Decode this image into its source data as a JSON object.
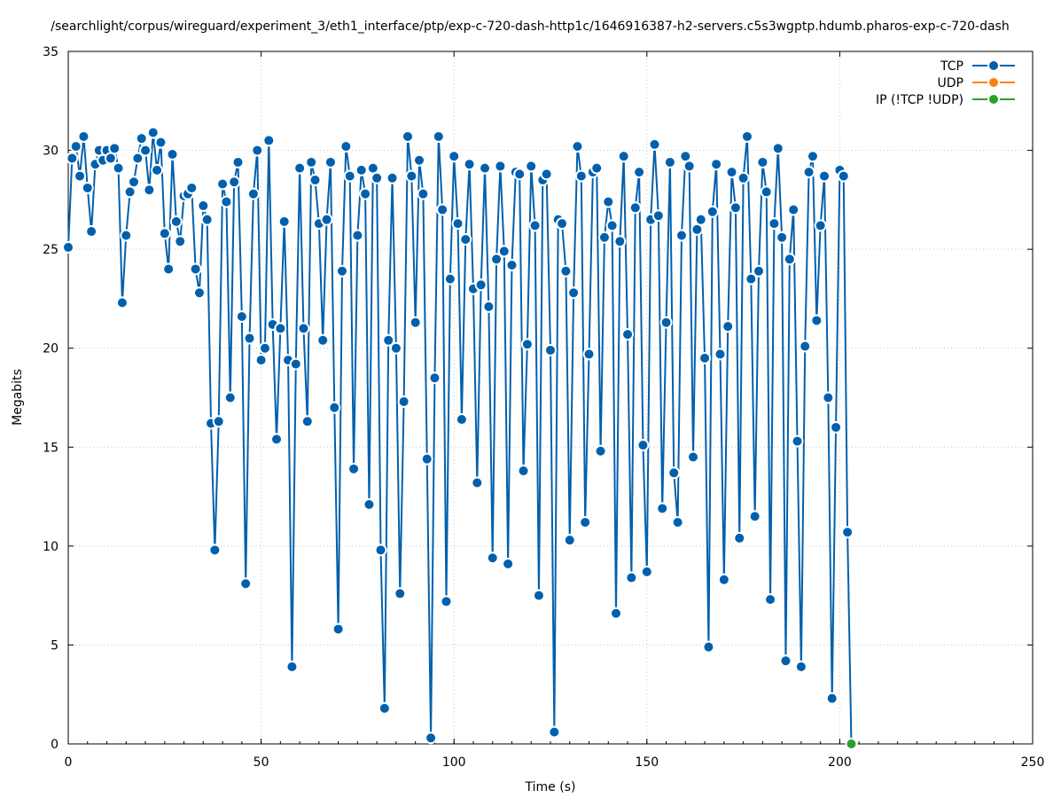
{
  "chart_data": {
    "type": "line",
    "title": "/searchlight/corpus/wireguard/experiment_3/eth1_interface/ptp/exp-c-720-dash-http1c/1646916387-h2-servers.c5s3wgptp.hdumb.pharos-exp-c-720-dash",
    "xlabel": "Time (s)",
    "ylabel": "Megabits",
    "xlim": [
      0,
      250
    ],
    "ylim": [
      0,
      35
    ],
    "xticks": [
      0,
      50,
      100,
      150,
      200,
      250
    ],
    "yticks": [
      0,
      5,
      10,
      15,
      20,
      25,
      30,
      35
    ],
    "grid": true,
    "legend_position": "top-right",
    "series": [
      {
        "name": "TCP",
        "color": "#0060ad",
        "x": [
          0,
          1,
          2,
          3,
          4,
          5,
          6,
          7,
          8,
          9,
          10,
          11,
          12,
          13,
          14,
          15,
          16,
          17,
          18,
          19,
          20,
          21,
          22,
          23,
          24,
          25,
          26,
          27,
          28,
          29,
          30,
          31,
          32,
          33,
          34,
          35,
          36,
          37,
          38,
          39,
          40,
          41,
          42,
          43,
          44,
          45,
          46,
          47,
          48,
          49,
          50,
          51,
          52,
          53,
          54,
          55,
          56,
          57,
          58,
          59,
          60,
          61,
          62,
          63,
          64,
          65,
          66,
          67,
          68,
          69,
          70,
          71,
          72,
          73,
          74,
          75,
          76,
          77,
          78,
          79,
          80,
          81,
          82,
          83,
          84,
          85,
          86,
          87,
          88,
          89,
          90,
          91,
          92,
          93,
          94,
          95,
          96,
          97,
          98,
          99,
          100,
          101,
          102,
          103,
          104,
          105,
          106,
          107,
          108,
          109,
          110,
          111,
          112,
          113,
          114,
          115,
          116,
          117,
          118,
          119,
          120,
          121,
          122,
          123,
          124,
          125,
          126,
          127,
          128,
          129,
          130,
          131,
          132,
          133,
          134,
          135,
          136,
          137,
          138,
          139,
          140,
          141,
          142,
          143,
          144,
          145,
          146,
          147,
          148,
          149,
          150,
          151,
          152,
          153,
          154,
          155,
          156,
          157,
          158,
          159,
          160,
          161,
          162,
          163,
          164,
          165,
          166,
          167,
          168,
          169,
          170,
          171,
          172,
          173,
          174,
          175,
          176,
          177,
          178,
          179,
          180,
          181,
          182,
          183,
          184,
          185,
          186,
          187,
          188,
          189,
          190,
          191,
          192,
          193,
          194,
          195,
          196,
          197,
          198,
          199,
          200,
          201,
          202,
          203
        ],
        "y": [
          25.1,
          29.6,
          30.2,
          28.7,
          30.7,
          28.1,
          25.9,
          29.3,
          30.0,
          29.5,
          30.0,
          29.6,
          30.1,
          29.1,
          22.3,
          25.7,
          27.9,
          28.4,
          29.6,
          30.6,
          30.0,
          28.0,
          30.9,
          29.0,
          30.4,
          25.8,
          24.0,
          29.8,
          26.4,
          25.4,
          27.7,
          27.8,
          28.1,
          24.0,
          22.8,
          27.2,
          26.5,
          16.2,
          9.8,
          16.3,
          28.3,
          27.4,
          17.5,
          28.4,
          29.4,
          21.6,
          8.1,
          20.5,
          27.8,
          30.0,
          19.4,
          20.0,
          30.5,
          21.2,
          15.4,
          21.0,
          26.4,
          19.4,
          3.9,
          19.2,
          29.1,
          21.0,
          16.3,
          29.4,
          28.5,
          26.3,
          20.4,
          26.5,
          29.4,
          17.0,
          5.8,
          23.9,
          30.2,
          28.7,
          13.9,
          25.7,
          29.0,
          27.8,
          12.1,
          29.1,
          28.6,
          9.8,
          1.8,
          20.4,
          28.6,
          20.0,
          7.6,
          17.3,
          30.7,
          28.7,
          21.3,
          29.5,
          27.8,
          14.4,
          0.3,
          18.5,
          30.7,
          27.0,
          7.2,
          23.5,
          29.7,
          26.3,
          16.4,
          25.5,
          29.3,
          23.0,
          13.2,
          23.2,
          29.1,
          22.1,
          9.4,
          24.5,
          29.2,
          24.9,
          9.1,
          24.2,
          28.9,
          28.8,
          13.8,
          20.2,
          29.2,
          26.2,
          7.5,
          28.5,
          28.8,
          19.9,
          0.6,
          26.5,
          26.3,
          23.9,
          10.3,
          22.8,
          30.2,
          28.7,
          11.2,
          19.7,
          28.9,
          29.1,
          14.8,
          25.6,
          27.4,
          26.2,
          6.6,
          25.4,
          29.7,
          20.7,
          8.4,
          27.1,
          28.9,
          15.1,
          8.7,
          26.5,
          30.3,
          26.7,
          11.9,
          21.3,
          29.4,
          13.7,
          11.2,
          25.7,
          29.7,
          29.2,
          14.5,
          26.0,
          26.5,
          19.5,
          4.9,
          26.9,
          29.3,
          19.7,
          8.3,
          21.1,
          28.9,
          27.1,
          10.4,
          28.6,
          30.7,
          23.5,
          11.5,
          23.9,
          29.4,
          27.9,
          7.3,
          26.3,
          30.1,
          25.6,
          4.2,
          24.5,
          27.0,
          15.3,
          3.9,
          20.1,
          28.9,
          29.7,
          21.4,
          26.2,
          28.7,
          17.5,
          2.3,
          16.0,
          29.0,
          28.7,
          10.7,
          0.0
        ]
      },
      {
        "name": "UDP",
        "color": "#ff7f0e",
        "x": [],
        "y": []
      },
      {
        "name": "IP (!TCP  !UDP)",
        "color": "#2ca02c",
        "x": [
          203
        ],
        "y": [
          0.0
        ]
      }
    ]
  }
}
